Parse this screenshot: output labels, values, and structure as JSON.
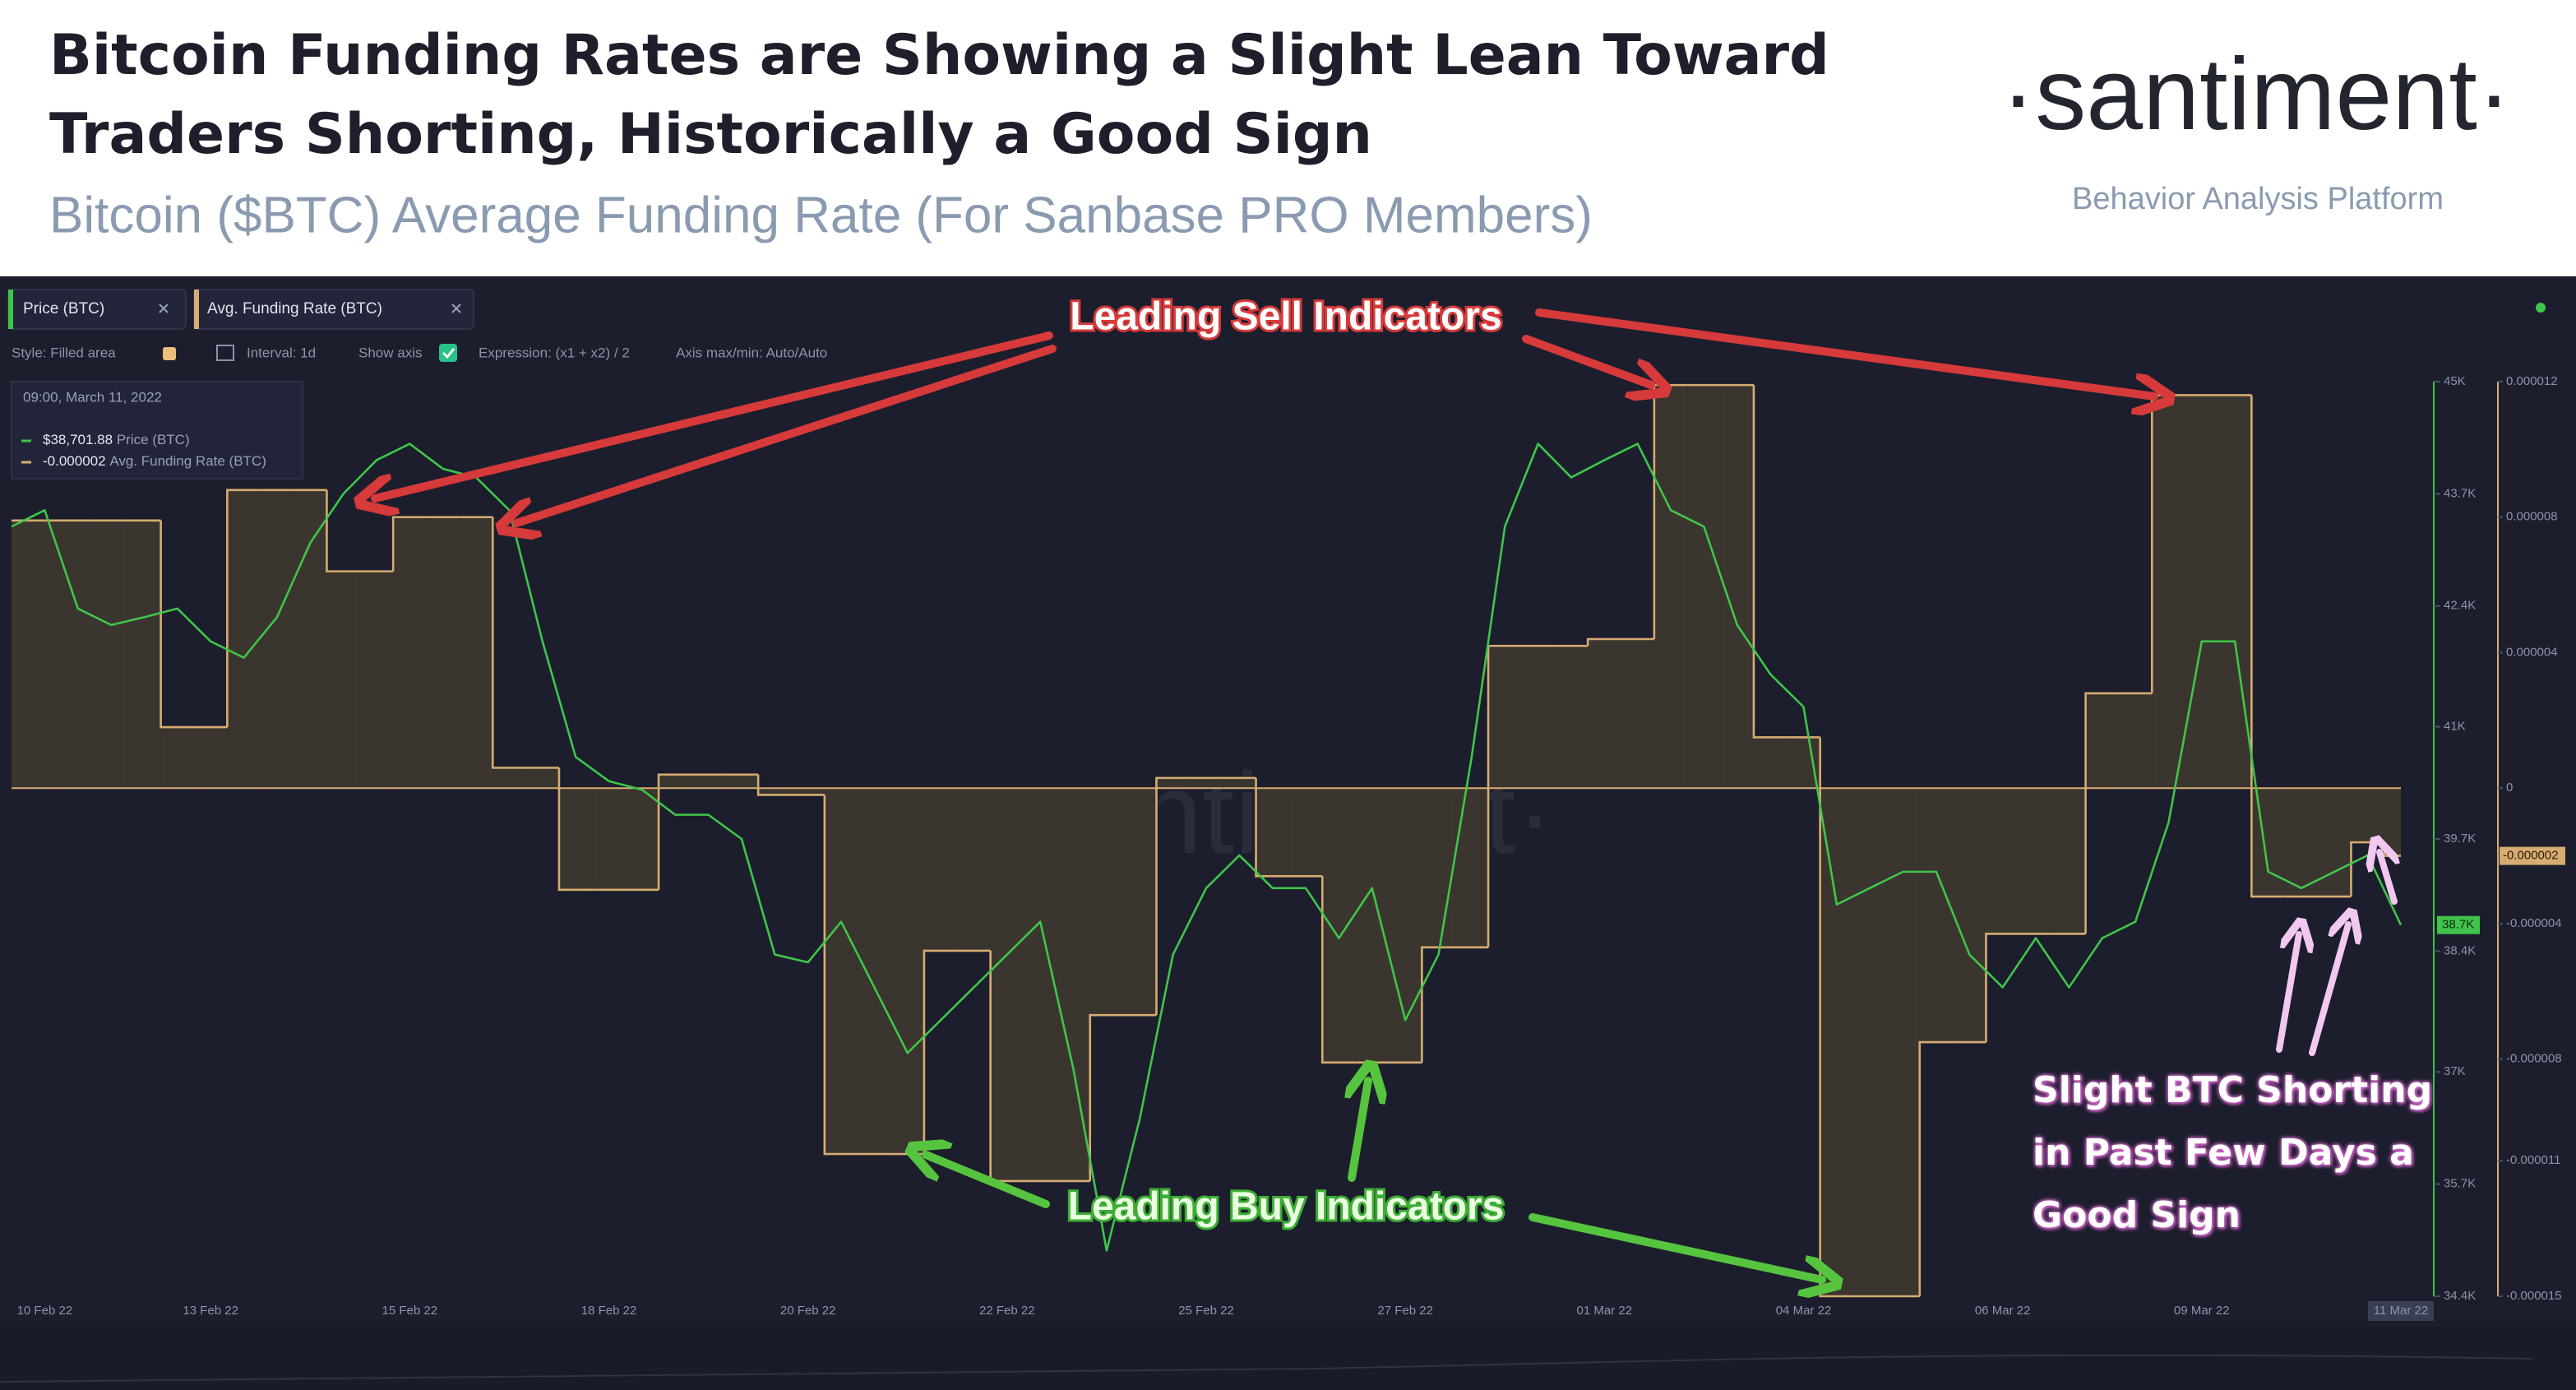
{
  "header": {
    "title": "Bitcoin Funding Rates are Showing a Slight Lean Toward Traders Shorting, Historically a Good Sign",
    "subtitle": "Bitcoin ($BTC) Average Funding Rate (For Sanbase PRO Members)",
    "logo": "·santiment·",
    "tagline": "Behavior Analysis Platform"
  },
  "ui": {
    "toolbar": [
      "Style: Filled area",
      "Interval: 1d",
      "Show axis",
      "Expression: (x1 + x2) / 2",
      "Axis max/min: Auto/Auto"
    ],
    "tooltip": {
      "time": "09:00, March 11, 2022",
      "price": "$38,701.88",
      "funding": "-0.000002"
    },
    "price_badge": "38.7K",
    "funding_badge": "-0.000002",
    "watermark": "·santiment·"
  },
  "chart_data": {
    "type": "line",
    "categories": [
      null,
      "10 Feb 22",
      null,
      null,
      null,
      null,
      "13 Feb 22",
      null,
      null,
      null,
      null,
      null,
      "15 Feb 22",
      null,
      null,
      null,
      null,
      null,
      "18 Feb 22",
      null,
      null,
      null,
      null,
      null,
      "20 Feb 22",
      null,
      null,
      null,
      null,
      null,
      "22 Feb 22",
      null,
      null,
      null,
      null,
      null,
      "25 Feb 22",
      null,
      null,
      null,
      null,
      null,
      "27 Feb 22",
      null,
      null,
      null,
      null,
      null,
      "01 Mar 22",
      null,
      null,
      null,
      null,
      null,
      "04 Mar 22",
      null,
      null,
      null,
      null,
      null,
      "06 Mar 22",
      null,
      null,
      null,
      null,
      null,
      "09 Mar 22",
      null,
      null,
      null,
      null,
      null,
      "11 Mar 22"
    ],
    "series": [
      {
        "name": "Price (BTC)",
        "color": "#3fc54a",
        "values": [
          43320,
          43510,
          42370,
          42180,
          42270,
          42370,
          41990,
          41800,
          42270,
          43130,
          43700,
          44090,
          44280,
          43990,
          43890,
          43510,
          41990,
          40650,
          40370,
          40270,
          39980,
          39980,
          39700,
          38360,
          38270,
          38740,
          37980,
          37220,
          37600,
          37980,
          38360,
          38740,
          37030,
          34930,
          36460,
          38360,
          39130,
          39510,
          39130,
          39130,
          38550,
          39130,
          37600,
          38360,
          40650,
          43320,
          44280,
          43890,
          44090,
          44280,
          43510,
          43320,
          42180,
          41610,
          41230,
          38940,
          39130,
          39320,
          39320,
          38360,
          37980,
          38550,
          37980,
          38550,
          38740,
          39890,
          41990,
          41990,
          39320,
          39130,
          39320,
          39510,
          38701.88
        ]
      },
      {
        "name": "Avg. Funding Rate (BTC)",
        "color": "#d6ac72",
        "axis": "y2",
        "step": true,
        "fill": "#3a352f",
        "values": [
          7.9e-06,
          7.9e-06,
          7.9e-06,
          7.9e-06,
          7.9e-06,
          1.8e-06,
          1.8e-06,
          8.8e-06,
          8.8e-06,
          8.8e-06,
          6.4e-06,
          6.4e-06,
          8e-06,
          8e-06,
          8e-06,
          6e-07,
          6e-07,
          -3e-06,
          -3e-06,
          -3e-06,
          4e-07,
          4e-07,
          4e-07,
          -2e-07,
          -2e-07,
          -1.08e-05,
          -1.08e-05,
          -1.08e-05,
          -4.8e-06,
          -4.8e-06,
          -1.16e-05,
          -1.16e-05,
          -1.16e-05,
          -6.7e-06,
          -6.7e-06,
          3e-07,
          3e-07,
          3e-07,
          -2.6e-06,
          -2.6e-06,
          -8.1e-06,
          -8.1e-06,
          -8.1e-06,
          -4.7e-06,
          -4.7e-06,
          4.2e-06,
          4.2e-06,
          4.2e-06,
          4.4e-06,
          4.4e-06,
          1.19e-05,
          1.19e-05,
          1.19e-05,
          1.5e-06,
          1.5e-06,
          -1.5e-05,
          -1.5e-05,
          -1.5e-05,
          -7.5e-06,
          -7.5e-06,
          -4.3e-06,
          -4.3e-06,
          -4.3e-06,
          2.8e-06,
          2.8e-06,
          1.16e-05,
          1.16e-05,
          1.16e-05,
          -3.2e-06,
          -3.2e-06,
          -3.2e-06,
          -1.6e-06,
          -2e-06
        ]
      }
    ],
    "ylim": [
      34400,
      45000
    ],
    "yticks": [
      {
        "value": 45000,
        "label": "45K"
      },
      {
        "value": 43700,
        "label": "43.7K"
      },
      {
        "value": 42400,
        "label": "42.4K"
      },
      {
        "value": 41000,
        "label": "41K"
      },
      {
        "value": 39700,
        "label": "39.7K"
      },
      {
        "value": 38400,
        "label": "38.4K"
      },
      {
        "value": 37000,
        "label": "37K"
      },
      {
        "value": 35700,
        "label": "35.7K"
      },
      {
        "value": 34400,
        "label": "34.4K"
      }
    ],
    "y2lim": [
      -1.5e-05,
      1.2e-05
    ],
    "y2ticks": [
      1.2e-05,
      8e-06,
      4e-06,
      0,
      -4e-06,
      -8e-06,
      -1.1e-05,
      -1.5e-05
    ],
    "annotations": [
      "Leading Sell Indicators",
      "Leading Buy Indicators",
      "Slight BTC Shorting in Past Few Days a Good Sign"
    ]
  }
}
